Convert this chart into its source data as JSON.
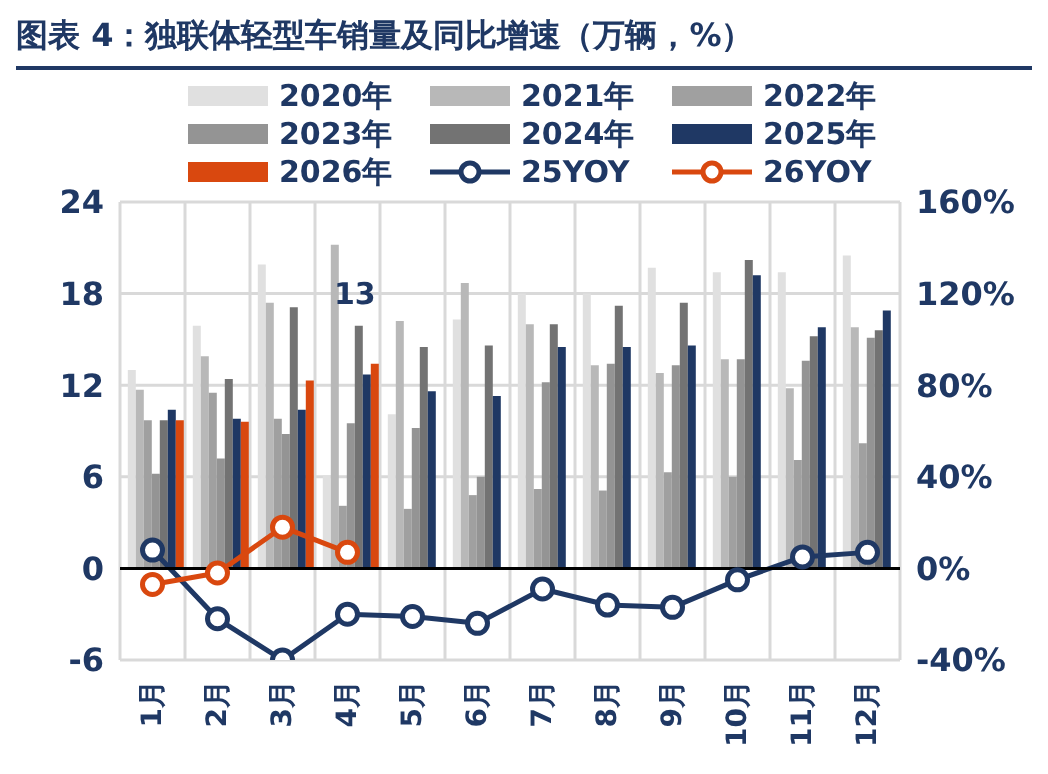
{
  "chart_data": {
    "type": "bar",
    "title": "图表 4：独联体轻型车销量及同比增速（万辆，%）",
    "categories": [
      "1月",
      "2月",
      "3月",
      "4月",
      "5月",
      "6月",
      "7月",
      "8月",
      "9月",
      "10月",
      "11月",
      "12月"
    ],
    "series": [
      {
        "name": "2020年",
        "color": "#e0e0e0",
        "values": [
          13.0,
          15.9,
          19.9,
          6.1,
          10.1,
          16.3,
          18.0,
          18.0,
          19.7,
          19.4,
          19.4,
          20.5
        ]
      },
      {
        "name": "2021年",
        "color": "#b8b8b8",
        "values": [
          11.7,
          13.9,
          17.4,
          21.2,
          16.2,
          18.7,
          16.0,
          13.3,
          12.8,
          13.7,
          11.8,
          15.8
        ]
      },
      {
        "name": "2022年",
        "color": "#a0a0a0",
        "values": [
          9.7,
          11.5,
          9.8,
          4.1,
          3.9,
          4.8,
          5.2,
          5.1,
          6.3,
          6.0,
          7.1,
          8.2
        ]
      },
      {
        "name": "2023年",
        "color": "#949494",
        "values": [
          6.2,
          7.2,
          8.8,
          9.5,
          9.2,
          6.0,
          12.2,
          13.4,
          13.3,
          13.7,
          13.6,
          15.1
        ]
      },
      {
        "name": "2024年",
        "color": "#737373",
        "values": [
          9.7,
          12.4,
          17.1,
          15.9,
          14.5,
          14.6,
          16.0,
          17.2,
          17.4,
          20.2,
          15.2,
          15.6
        ]
      },
      {
        "name": "2025年",
        "color": "#1f3864",
        "values": [
          10.4,
          9.8,
          10.4,
          12.7,
          11.6,
          11.3,
          14.5,
          14.5,
          14.6,
          19.2,
          15.8,
          16.9
        ]
      },
      {
        "name": "2026年",
        "color": "#d9480f",
        "values": [
          9.7,
          9.6,
          12.3,
          13.4,
          null,
          null,
          null,
          null,
          null,
          null,
          null,
          null
        ],
        "value_labels": [
          null,
          null,
          null,
          "13",
          null,
          null,
          null,
          null,
          null,
          null,
          null,
          null
        ]
      },
      {
        "name": "25YOY",
        "type": "line",
        "axis": "y2",
        "color": "#1f3864",
        "values": [
          8,
          -22,
          -40,
          -20,
          -21,
          -24,
          -9,
          -16,
          -17,
          -5,
          5,
          7
        ]
      },
      {
        "name": "26YOY",
        "type": "line",
        "axis": "y2",
        "color": "#d9480f",
        "values": [
          -7,
          -2,
          18,
          7,
          null,
          null,
          null,
          null,
          null,
          null,
          null,
          null
        ]
      }
    ],
    "ylim": [
      -6,
      24
    ],
    "yticks": [
      -6,
      0,
      6,
      12,
      18,
      24
    ],
    "y2lim": [
      -40,
      160
    ],
    "y2ticks": [
      {
        "value": -40,
        "label": "-40%"
      },
      {
        "value": 0,
        "label": "0%"
      },
      {
        "value": 40,
        "label": "40%"
      },
      {
        "value": 80,
        "label": "80%"
      },
      {
        "value": 120,
        "label": "120%"
      },
      {
        "value": 160,
        "label": "160%"
      }
    ],
    "ref_lines": [
      {
        "axis": "y",
        "value": 0,
        "color": "#000000"
      }
    ],
    "grid": true,
    "legend": "top",
    "marker": "circle",
    "line_style": "solid"
  }
}
